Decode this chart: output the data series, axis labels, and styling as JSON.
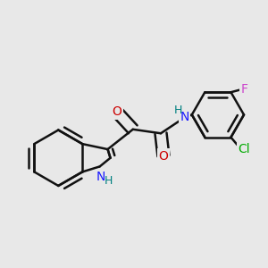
{
  "background_color": "#e8e8e8",
  "bond_color": "#111111",
  "line_width": 1.8,
  "font_size": 10,
  "figsize": [
    3.0,
    3.0
  ],
  "dpi": 100,
  "colors": {
    "N": "#1a1aff",
    "O": "#cc0000",
    "Cl": "#00aa00",
    "F": "#cc44cc",
    "H": "#008080",
    "C": "#111111"
  }
}
